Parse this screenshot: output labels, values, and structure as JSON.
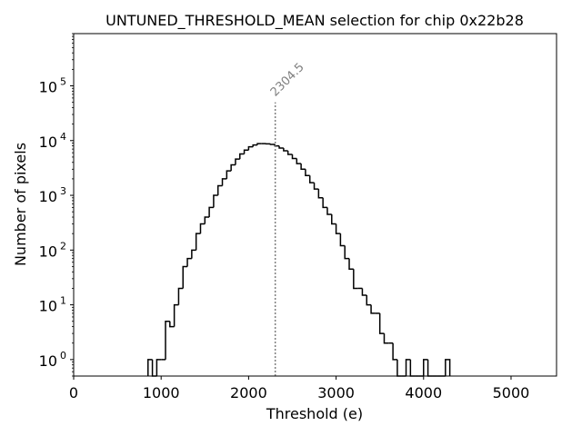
{
  "chart_data": {
    "type": "histogram",
    "title": "UNTUNED_THRESHOLD_MEAN selection for chip 0x22b28",
    "xlabel": "Threshold (e)",
    "ylabel": "Number of pixels",
    "xlim": [
      0,
      5520
    ],
    "ylim": [
      0.5,
      900000
    ],
    "yscale": "log",
    "x_ticks": [
      0,
      1000,
      2000,
      3000,
      4000,
      5000
    ],
    "x_tick_labels": [
      "0",
      "1000",
      "2000",
      "3000",
      "4000",
      "5000"
    ],
    "y_ticks": [
      1,
      10,
      100,
      1000,
      10000,
      100000
    ],
    "y_tick_labels": [
      {
        "base": "10",
        "exp": "0"
      },
      {
        "base": "10",
        "exp": "1"
      },
      {
        "base": "10",
        "exp": "2"
      },
      {
        "base": "10",
        "exp": "3"
      },
      {
        "base": "10",
        "exp": "4"
      },
      {
        "base": "10",
        "exp": "5"
      }
    ],
    "bin_width": 50,
    "bins_x0": [
      850,
      900,
      950,
      1000,
      1050,
      1100,
      1150,
      1200,
      1250,
      1300,
      1350,
      1400,
      1450,
      1500,
      1550,
      1600,
      1650,
      1700,
      1750,
      1800,
      1850,
      1900,
      1950,
      2000,
      2050,
      2100,
      2150,
      2200,
      2250,
      2300,
      2350,
      2400,
      2450,
      2500,
      2550,
      2600,
      2650,
      2700,
      2750,
      2800,
      2850,
      2900,
      2950,
      3000,
      3050,
      3100,
      3150,
      3200,
      3250,
      3300,
      3350,
      3400,
      3450,
      3500,
      3550,
      3600,
      3650,
      3700,
      3750,
      3800,
      3850,
      3900,
      3950,
      4000,
      4050,
      4100,
      4150,
      4200,
      4250
    ],
    "counts": [
      1,
      0,
      1,
      1,
      5,
      4,
      10,
      20,
      50,
      70,
      100,
      200,
      300,
      400,
      600,
      1000,
      1500,
      2000,
      2800,
      3600,
      4600,
      5700,
      6700,
      7700,
      8300,
      8800,
      8800,
      8700,
      8500,
      8000,
      7300,
      6500,
      5600,
      4700,
      3800,
      3000,
      2300,
      1700,
      1300,
      900,
      600,
      450,
      300,
      200,
      120,
      70,
      45,
      20,
      20,
      15,
      10,
      7,
      7,
      3,
      2,
      2,
      1,
      0,
      0,
      1,
      0,
      0,
      0,
      1,
      0,
      0,
      0,
      0,
      1
    ],
    "annotation": {
      "label": "2304.5",
      "x": 2304.5,
      "y_top": 50000
    }
  }
}
